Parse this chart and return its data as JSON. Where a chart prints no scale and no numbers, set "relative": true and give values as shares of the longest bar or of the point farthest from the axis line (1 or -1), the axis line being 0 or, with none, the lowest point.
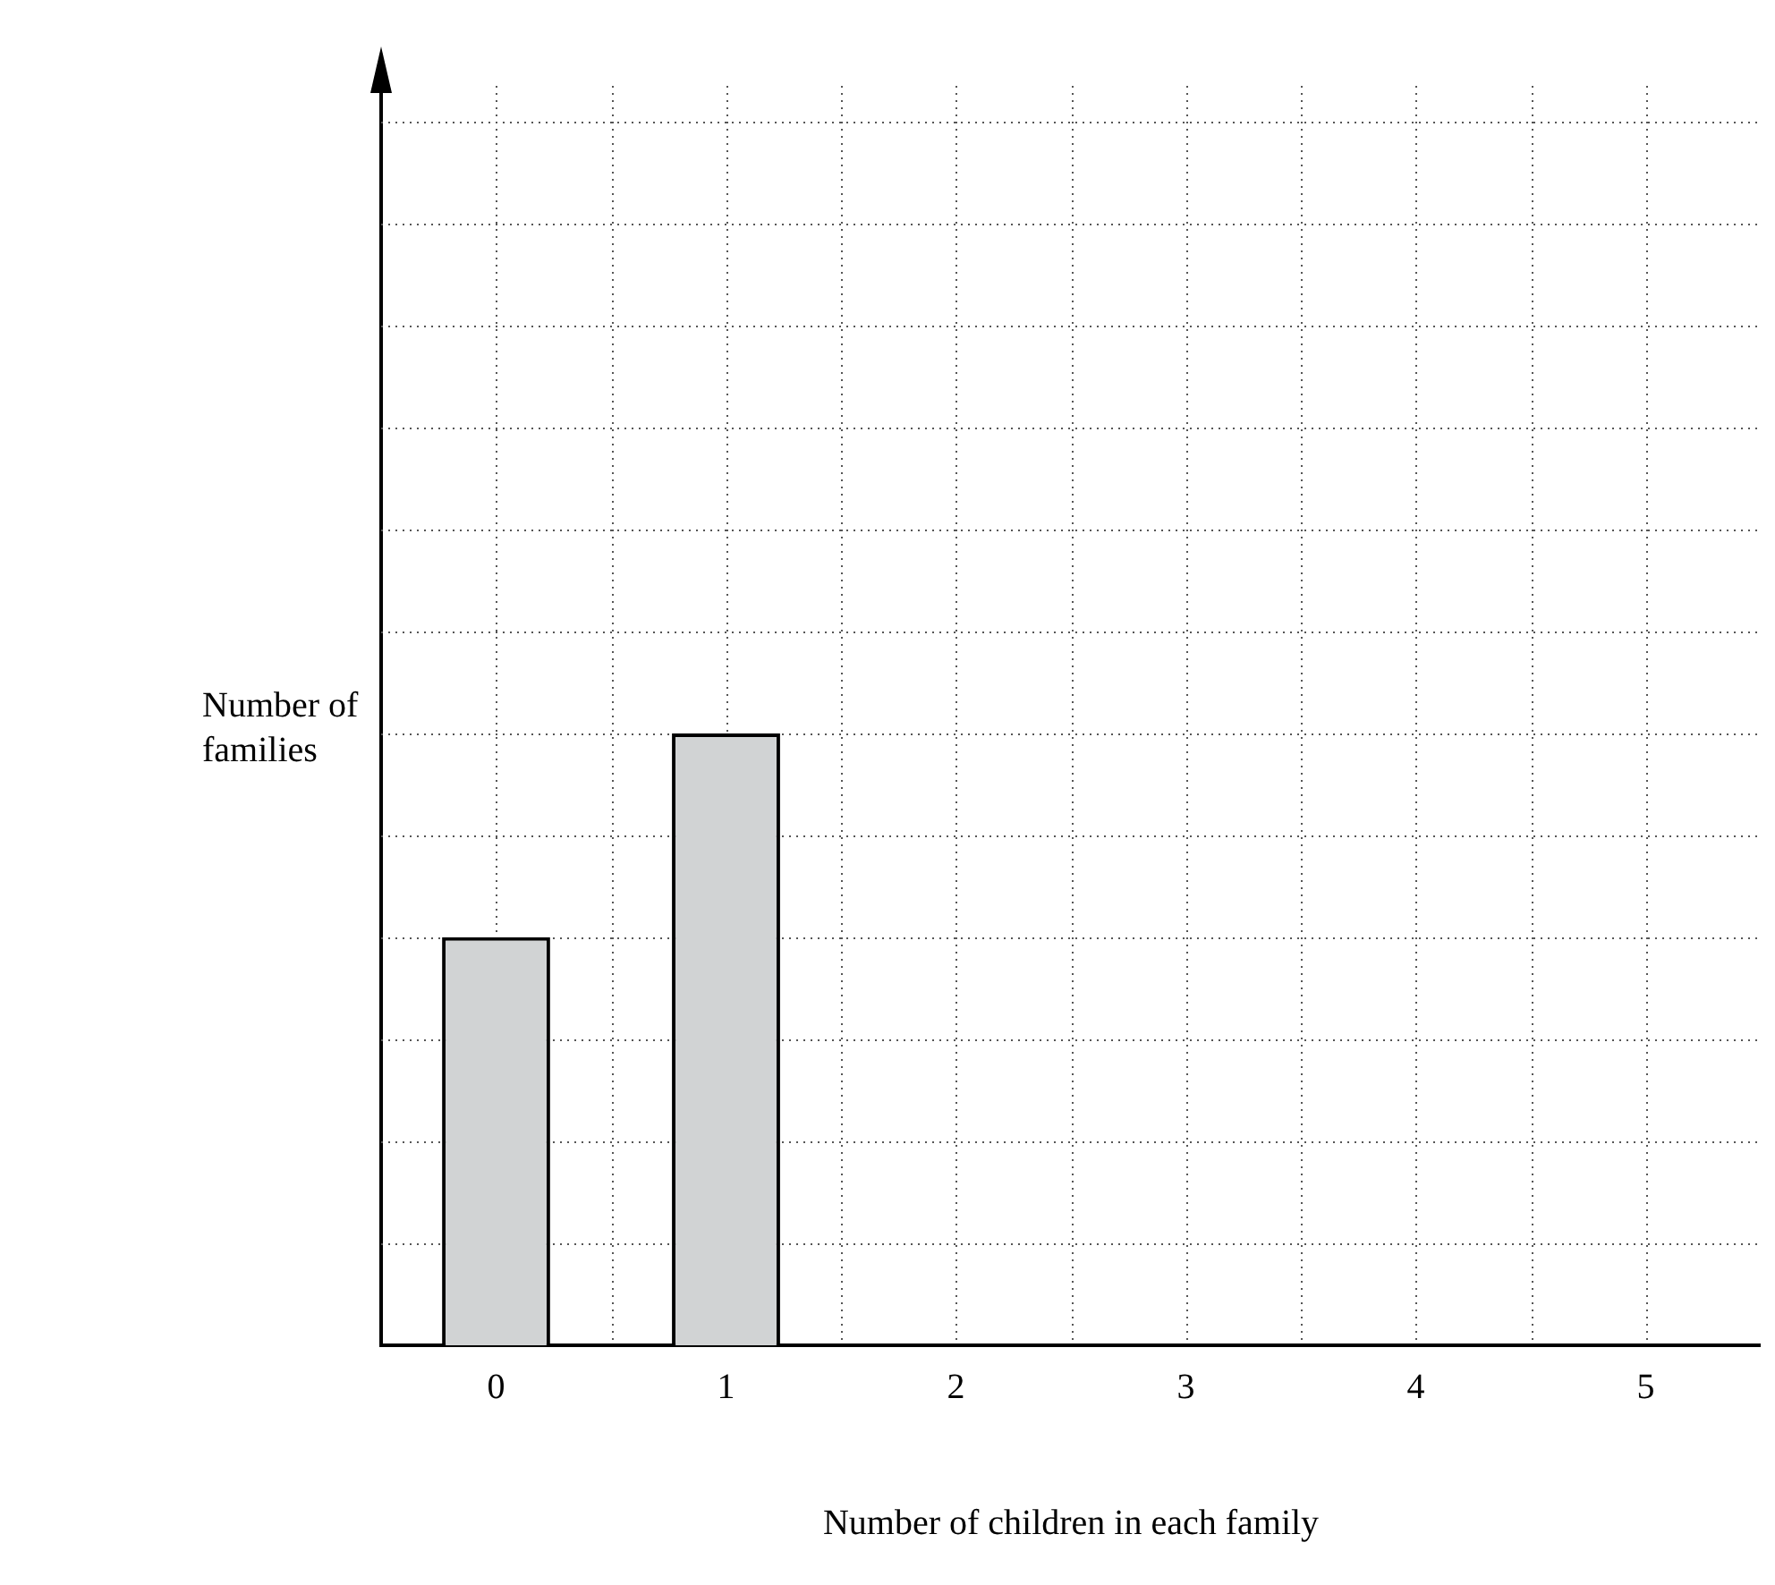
{
  "chart_data": {
    "type": "bar",
    "relative": true,
    "xlabel": "Number of children in each family",
    "ylabel": "Number of families",
    "categories": [
      "0",
      "1",
      "2",
      "3",
      "4",
      "5"
    ],
    "values": [
      0.667,
      1,
      null,
      null,
      null,
      null
    ],
    "color": "#d1d3d4",
    "grid": true,
    "legend": false
  }
}
